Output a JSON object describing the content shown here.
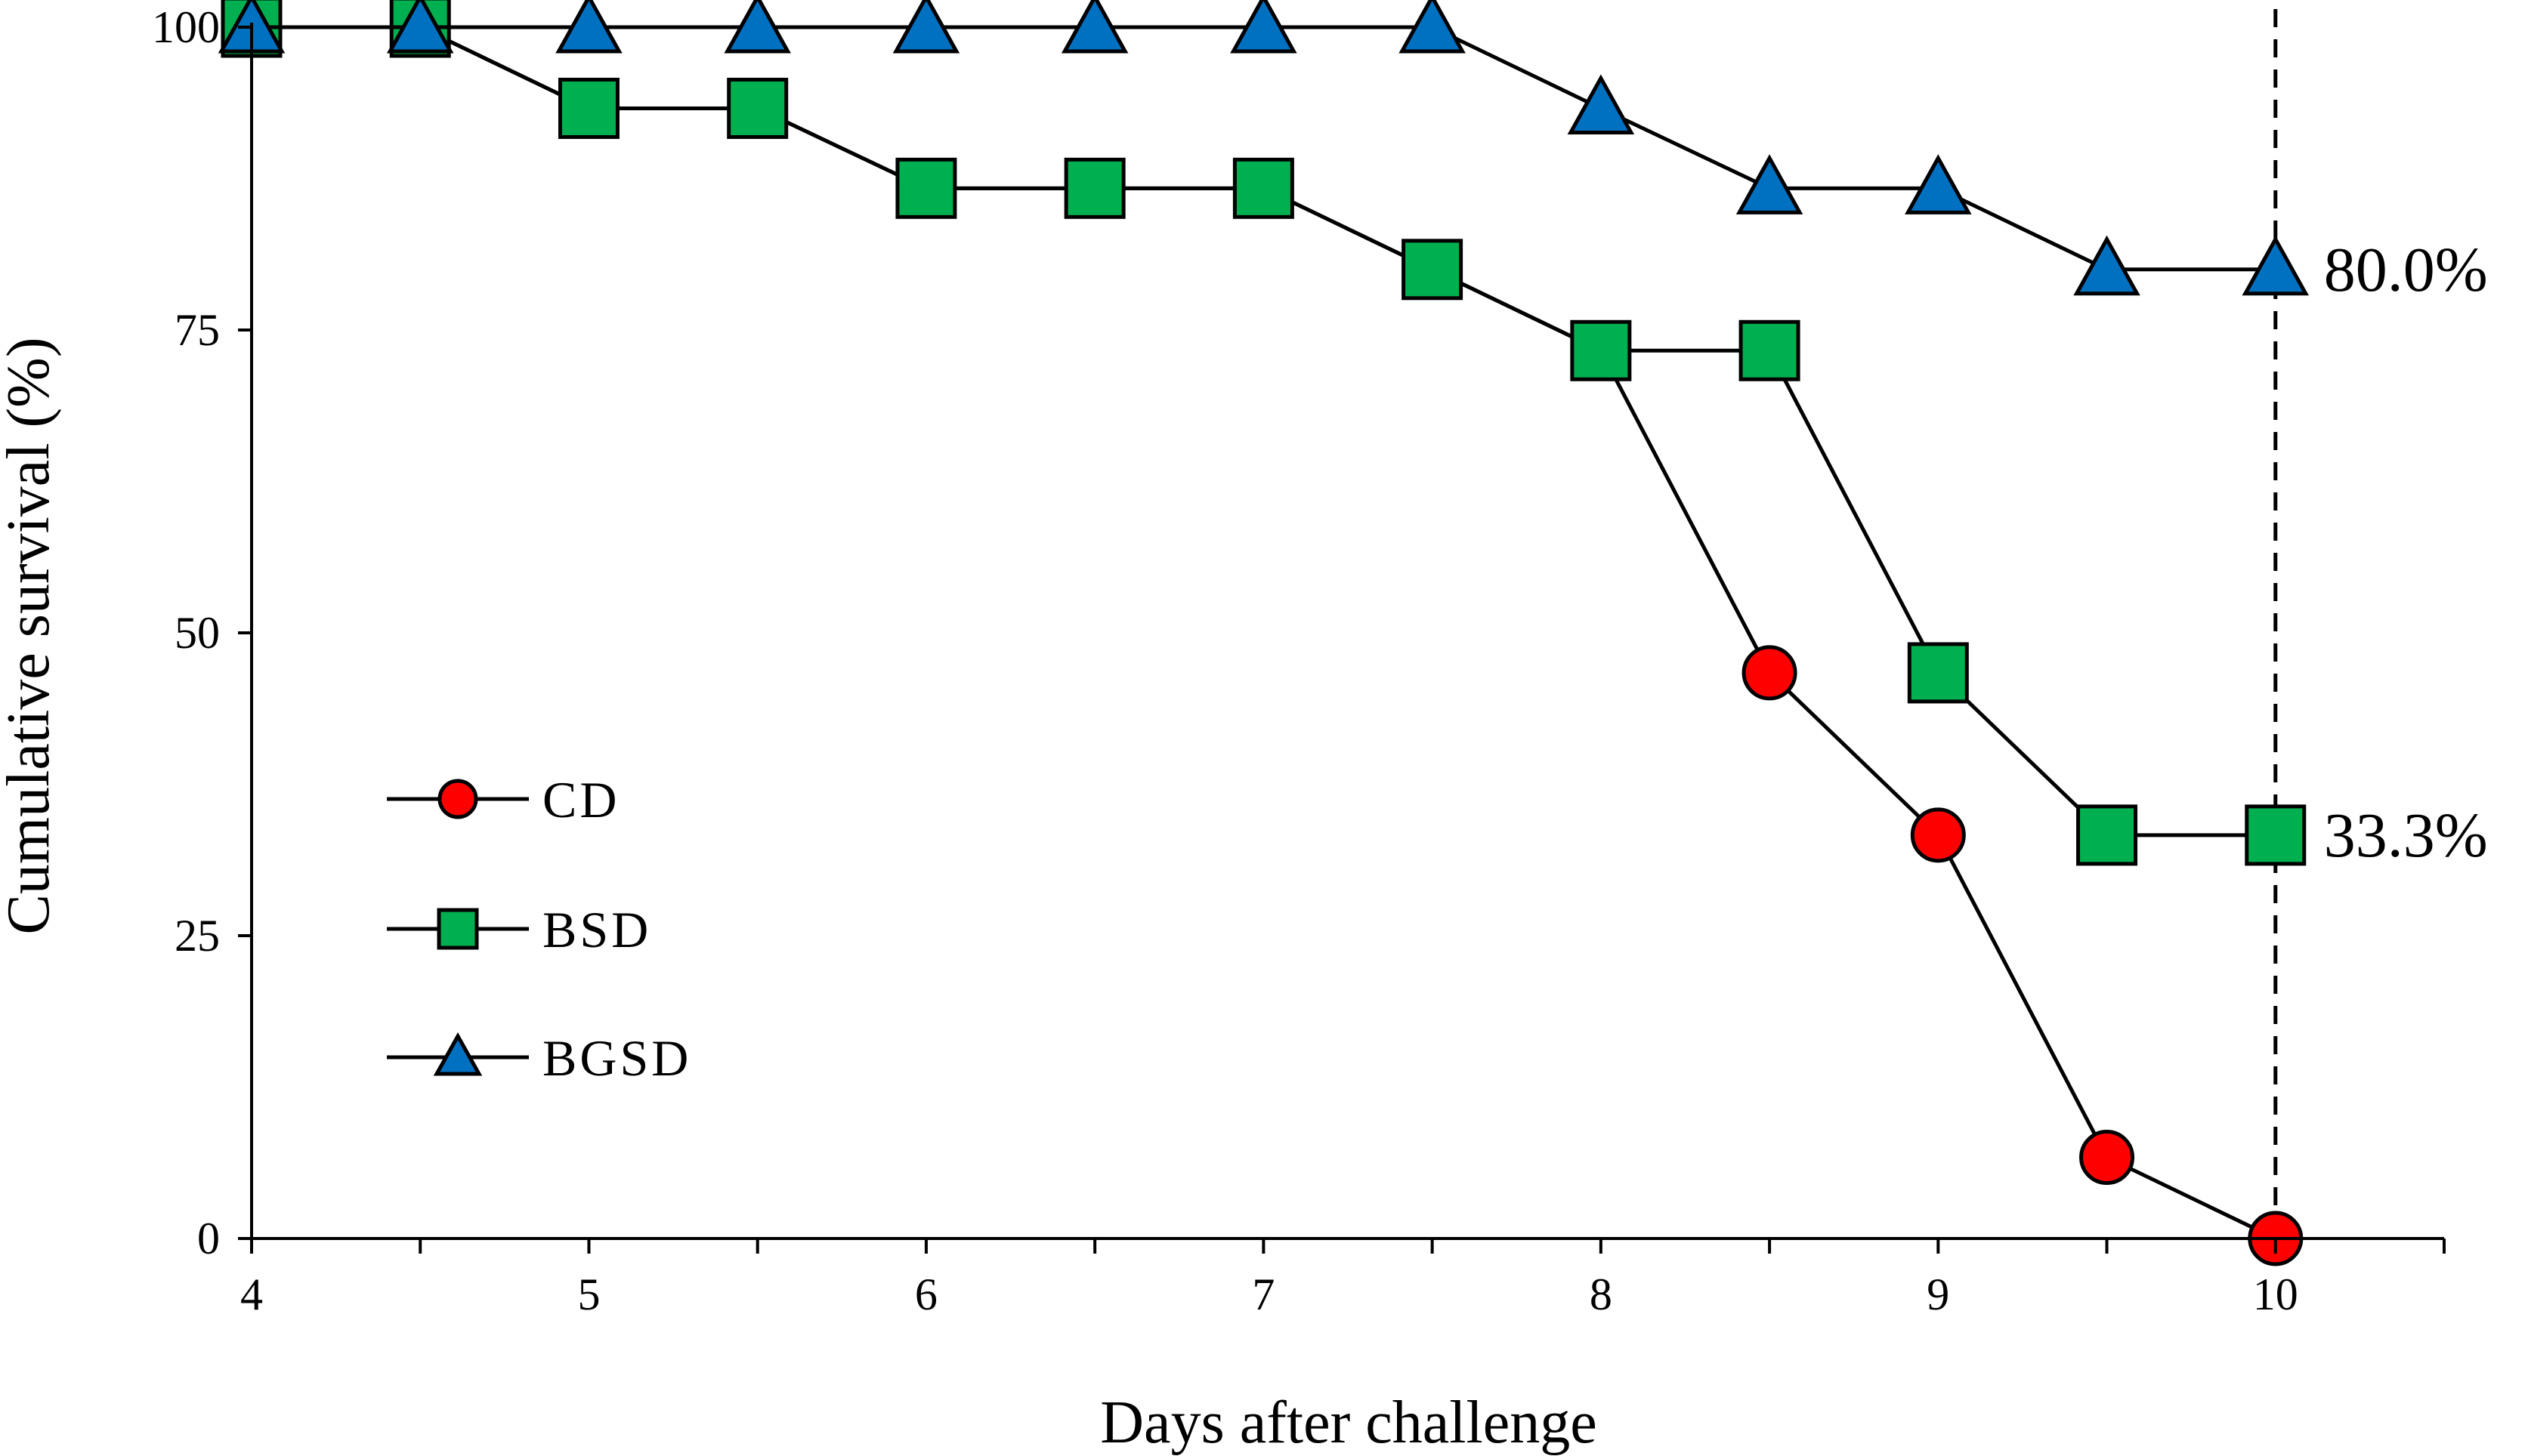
{
  "chart_data": {
    "type": "line",
    "title": "",
    "xlabel": "Days after challenge",
    "ylabel": "Cumulative survival (%)",
    "xlim": [
      4,
      10.5
    ],
    "ylim": [
      0,
      100
    ],
    "xticks": [
      4,
      5,
      6,
      7,
      8,
      9,
      10
    ],
    "xtick_labels": [
      "4",
      "5",
      "6",
      "7",
      "8",
      "9",
      "10"
    ],
    "yticks": [
      0,
      25,
      50,
      75,
      100
    ],
    "ytick_labels": [
      "0",
      "25",
      "50",
      "75",
      "100"
    ],
    "grid": false,
    "legend_position": "left-middle",
    "series": [
      {
        "name": "CD",
        "marker": "circle",
        "color": "#ff0000",
        "x": [
          4,
          4.5,
          5,
          5.5,
          6,
          6.5,
          7,
          7.5,
          8,
          8.5,
          9,
          9.5,
          10
        ],
        "y": [
          100,
          100,
          93.3,
          93.3,
          86.7,
          86.7,
          86.7,
          80,
          73.3,
          46.7,
          33.3,
          6.7,
          0
        ],
        "visible_markers_from_x": 8.5
      },
      {
        "name": "BSD",
        "marker": "square",
        "color": "#00b050",
        "x": [
          4,
          4.5,
          5,
          5.5,
          6,
          6.5,
          7,
          7.5,
          8,
          8.5,
          9,
          9.5,
          10
        ],
        "y": [
          100,
          100,
          93.3,
          93.3,
          86.7,
          86.7,
          86.7,
          80,
          73.3,
          73.3,
          46.7,
          33.3,
          33.3
        ]
      },
      {
        "name": "BGSD",
        "marker": "triangle",
        "color": "#0070c0",
        "x": [
          4,
          4.5,
          5,
          5.5,
          6,
          6.5,
          7,
          7.5,
          8,
          8.5,
          9,
          9.5,
          10
        ],
        "y": [
          100,
          100,
          100,
          100,
          100,
          100,
          100,
          100,
          93.3,
          86.7,
          86.7,
          80,
          80
        ]
      }
    ],
    "reference_line": {
      "x": 10,
      "style": "dashed"
    },
    "annotations": [
      {
        "text": "80.0%",
        "x": 10,
        "y": 80
      },
      {
        "text": "33.3%",
        "x": 10,
        "y": 33.3
      }
    ]
  }
}
